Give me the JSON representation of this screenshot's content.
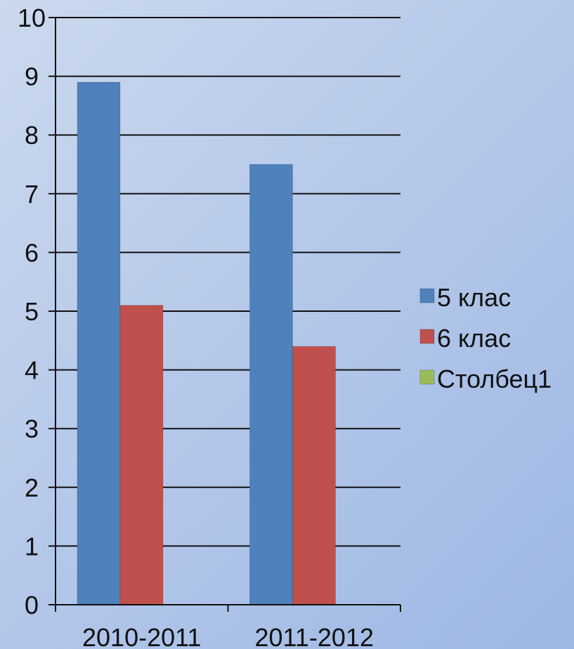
{
  "chart_data": {
    "type": "bar",
    "categories": [
      "2010-2011",
      "2011-2012"
    ],
    "series": [
      {
        "name": "5 клас",
        "values": [
          8.9,
          7.5
        ],
        "color": "#4f81bd"
      },
      {
        "name": "6 клас",
        "values": [
          5.1,
          4.4
        ],
        "color": "#c0504d"
      },
      {
        "name": "Столбец1",
        "values": [
          null,
          null
        ],
        "color": "#9bbb59"
      }
    ],
    "title": "",
    "xlabel": "",
    "ylabel": "",
    "ylim": [
      0,
      10
    ],
    "yticks": [
      "0",
      "1",
      "2",
      "3",
      "4",
      "5",
      "6",
      "7",
      "8",
      "9",
      "10"
    ],
    "grid": true,
    "legend_position": "right"
  }
}
